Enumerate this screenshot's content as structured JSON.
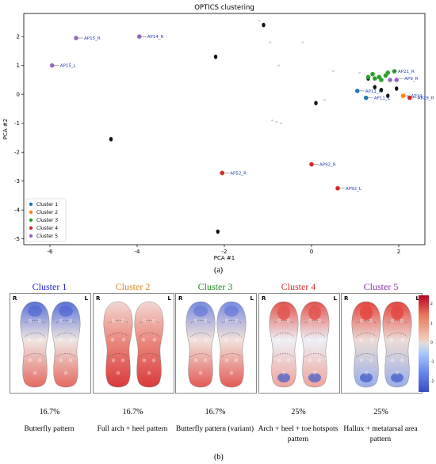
{
  "chart_data": {
    "type": "scatter",
    "title": "OPTICS clustering",
    "xlabel": "PCA #1",
    "ylabel": "PCA #2",
    "xlim": [
      -6.6,
      2.6
    ],
    "ylim": [
      -5.2,
      2.8
    ],
    "xticks": [
      "-6",
      "-4",
      "-2",
      "0",
      "2"
    ],
    "xtick_values": [
      -6,
      -4,
      -2,
      0,
      2
    ],
    "yticks": [
      "2",
      "1",
      "0",
      "-1",
      "-2",
      "-3",
      "-4",
      "-5"
    ],
    "ytick_values": [
      2,
      1,
      0,
      -1,
      -2,
      -3,
      -4,
      -5
    ],
    "grid": false,
    "legend_position": "bottom-left",
    "series": [
      {
        "name": "Cluster 1",
        "color": "#1f77b4",
        "points": [
          [
            1.05,
            0.12
          ],
          [
            1.25,
            -0.12
          ]
        ]
      },
      {
        "name": "Cluster 2",
        "color": "#ff7f0e",
        "points": [
          [
            2.1,
            -0.05
          ]
        ]
      },
      {
        "name": "Cluster 3",
        "color": "#2ca02c",
        "points": [
          [
            1.7,
            0.65
          ],
          [
            1.55,
            0.6
          ],
          [
            1.45,
            0.55
          ],
          [
            1.3,
            0.6
          ],
          [
            1.75,
            0.75
          ],
          [
            1.9,
            0.8
          ],
          [
            1.6,
            0.5
          ],
          [
            1.4,
            0.7
          ]
        ]
      },
      {
        "name": "Cluster 4",
        "color": "#d62728",
        "points": [
          [
            -2.05,
            -2.72
          ],
          [
            0.0,
            -2.42
          ],
          [
            0.6,
            -3.25
          ],
          [
            2.25,
            -0.12
          ]
        ]
      },
      {
        "name": "Cluster 5",
        "color": "#9467bd",
        "points": [
          [
            -5.4,
            1.95
          ],
          [
            -3.95,
            2.0
          ],
          [
            -5.95,
            1.0
          ],
          [
            1.8,
            0.5
          ],
          [
            1.95,
            0.5
          ]
        ]
      }
    ],
    "noise_points": [
      [
        -1.1,
        2.4
      ],
      [
        -2.2,
        1.3
      ],
      [
        -4.6,
        -1.55
      ],
      [
        -2.15,
        -4.75
      ],
      [
        0.1,
        -0.3
      ],
      [
        1.75,
        -0.05
      ],
      [
        1.45,
        0.25
      ],
      [
        1.95,
        0.2
      ],
      [
        1.3,
        0.55
      ],
      [
        1.6,
        0.15
      ],
      [
        -1.2,
        2.55
      ],
      [
        -0.95,
        1.8
      ],
      [
        -0.75,
        1.0
      ],
      [
        -0.2,
        1.8
      ],
      [
        0.5,
        0.8
      ],
      [
        1.1,
        0.75
      ],
      [
        0.3,
        -0.2
      ],
      [
        -0.9,
        -0.9
      ],
      [
        -0.7,
        -1.0
      ],
      [
        -0.8,
        -0.95
      ]
    ],
    "annotations": [
      {
        "text": "AP15_R",
        "x": -5.4,
        "y": 1.95
      },
      {
        "text": "AP14_R",
        "x": -3.95,
        "y": 2.0
      },
      {
        "text": "AP15_L",
        "x": -5.95,
        "y": 1.0
      },
      {
        "text": "AP21_R",
        "x": 1.8,
        "y": 0.8
      },
      {
        "text": "AP9_R",
        "x": 1.95,
        "y": 0.55
      },
      {
        "text": "AP11_R",
        "x": 1.05,
        "y": 0.12
      },
      {
        "text": "AP11_L",
        "x": 1.25,
        "y": -0.12
      },
      {
        "text": "AP19_L",
        "x": 2.1,
        "y": -0.05
      },
      {
        "text": "AP19_R",
        "x": 2.25,
        "y": -0.12
      },
      {
        "text": "AP52_R",
        "x": -2.05,
        "y": -2.72
      },
      {
        "text": "AP92_R",
        "x": 0.0,
        "y": -2.42
      },
      {
        "text": "AP92_L",
        "x": 0.6,
        "y": -3.25
      }
    ]
  },
  "panel_a_label": "(a)",
  "panel_b_label": "(b)",
  "foot_panels": [
    {
      "title": "Cluster 1",
      "title_color": "#1f1fd6",
      "percent": "16.7%",
      "description": "Butterfly pattern",
      "pattern": "butterfly"
    },
    {
      "title": "Cluster 2",
      "title_color": "#d4891a",
      "percent": "16.7%",
      "description": "Full arch + heel pattern",
      "pattern": "arch_heel"
    },
    {
      "title": "Cluster 3",
      "title_color": "#1e8a1e",
      "percent": "16.7%",
      "description": "Butterfly pattern (variant)",
      "pattern": "butterfly_variant"
    },
    {
      "title": "Cluster 4",
      "title_color": "#d62d2d",
      "percent": "25%",
      "description": "Arch + heel + toe hotspots pattern",
      "pattern": "hotspots"
    },
    {
      "title": "Cluster 5",
      "title_color": "#8a2fa8",
      "percent": "25%",
      "description": "Hallux + metatarsal area pattern",
      "pattern": "hallux"
    }
  ],
  "foot_side_labels": {
    "right": "R",
    "left": "L"
  },
  "colorbar": {
    "ticks": [
      "2",
      "1",
      "0",
      "-1",
      "-2"
    ],
    "tick_values": [
      2,
      1,
      0,
      -1,
      -2
    ],
    "colormap": "coolwarm"
  }
}
